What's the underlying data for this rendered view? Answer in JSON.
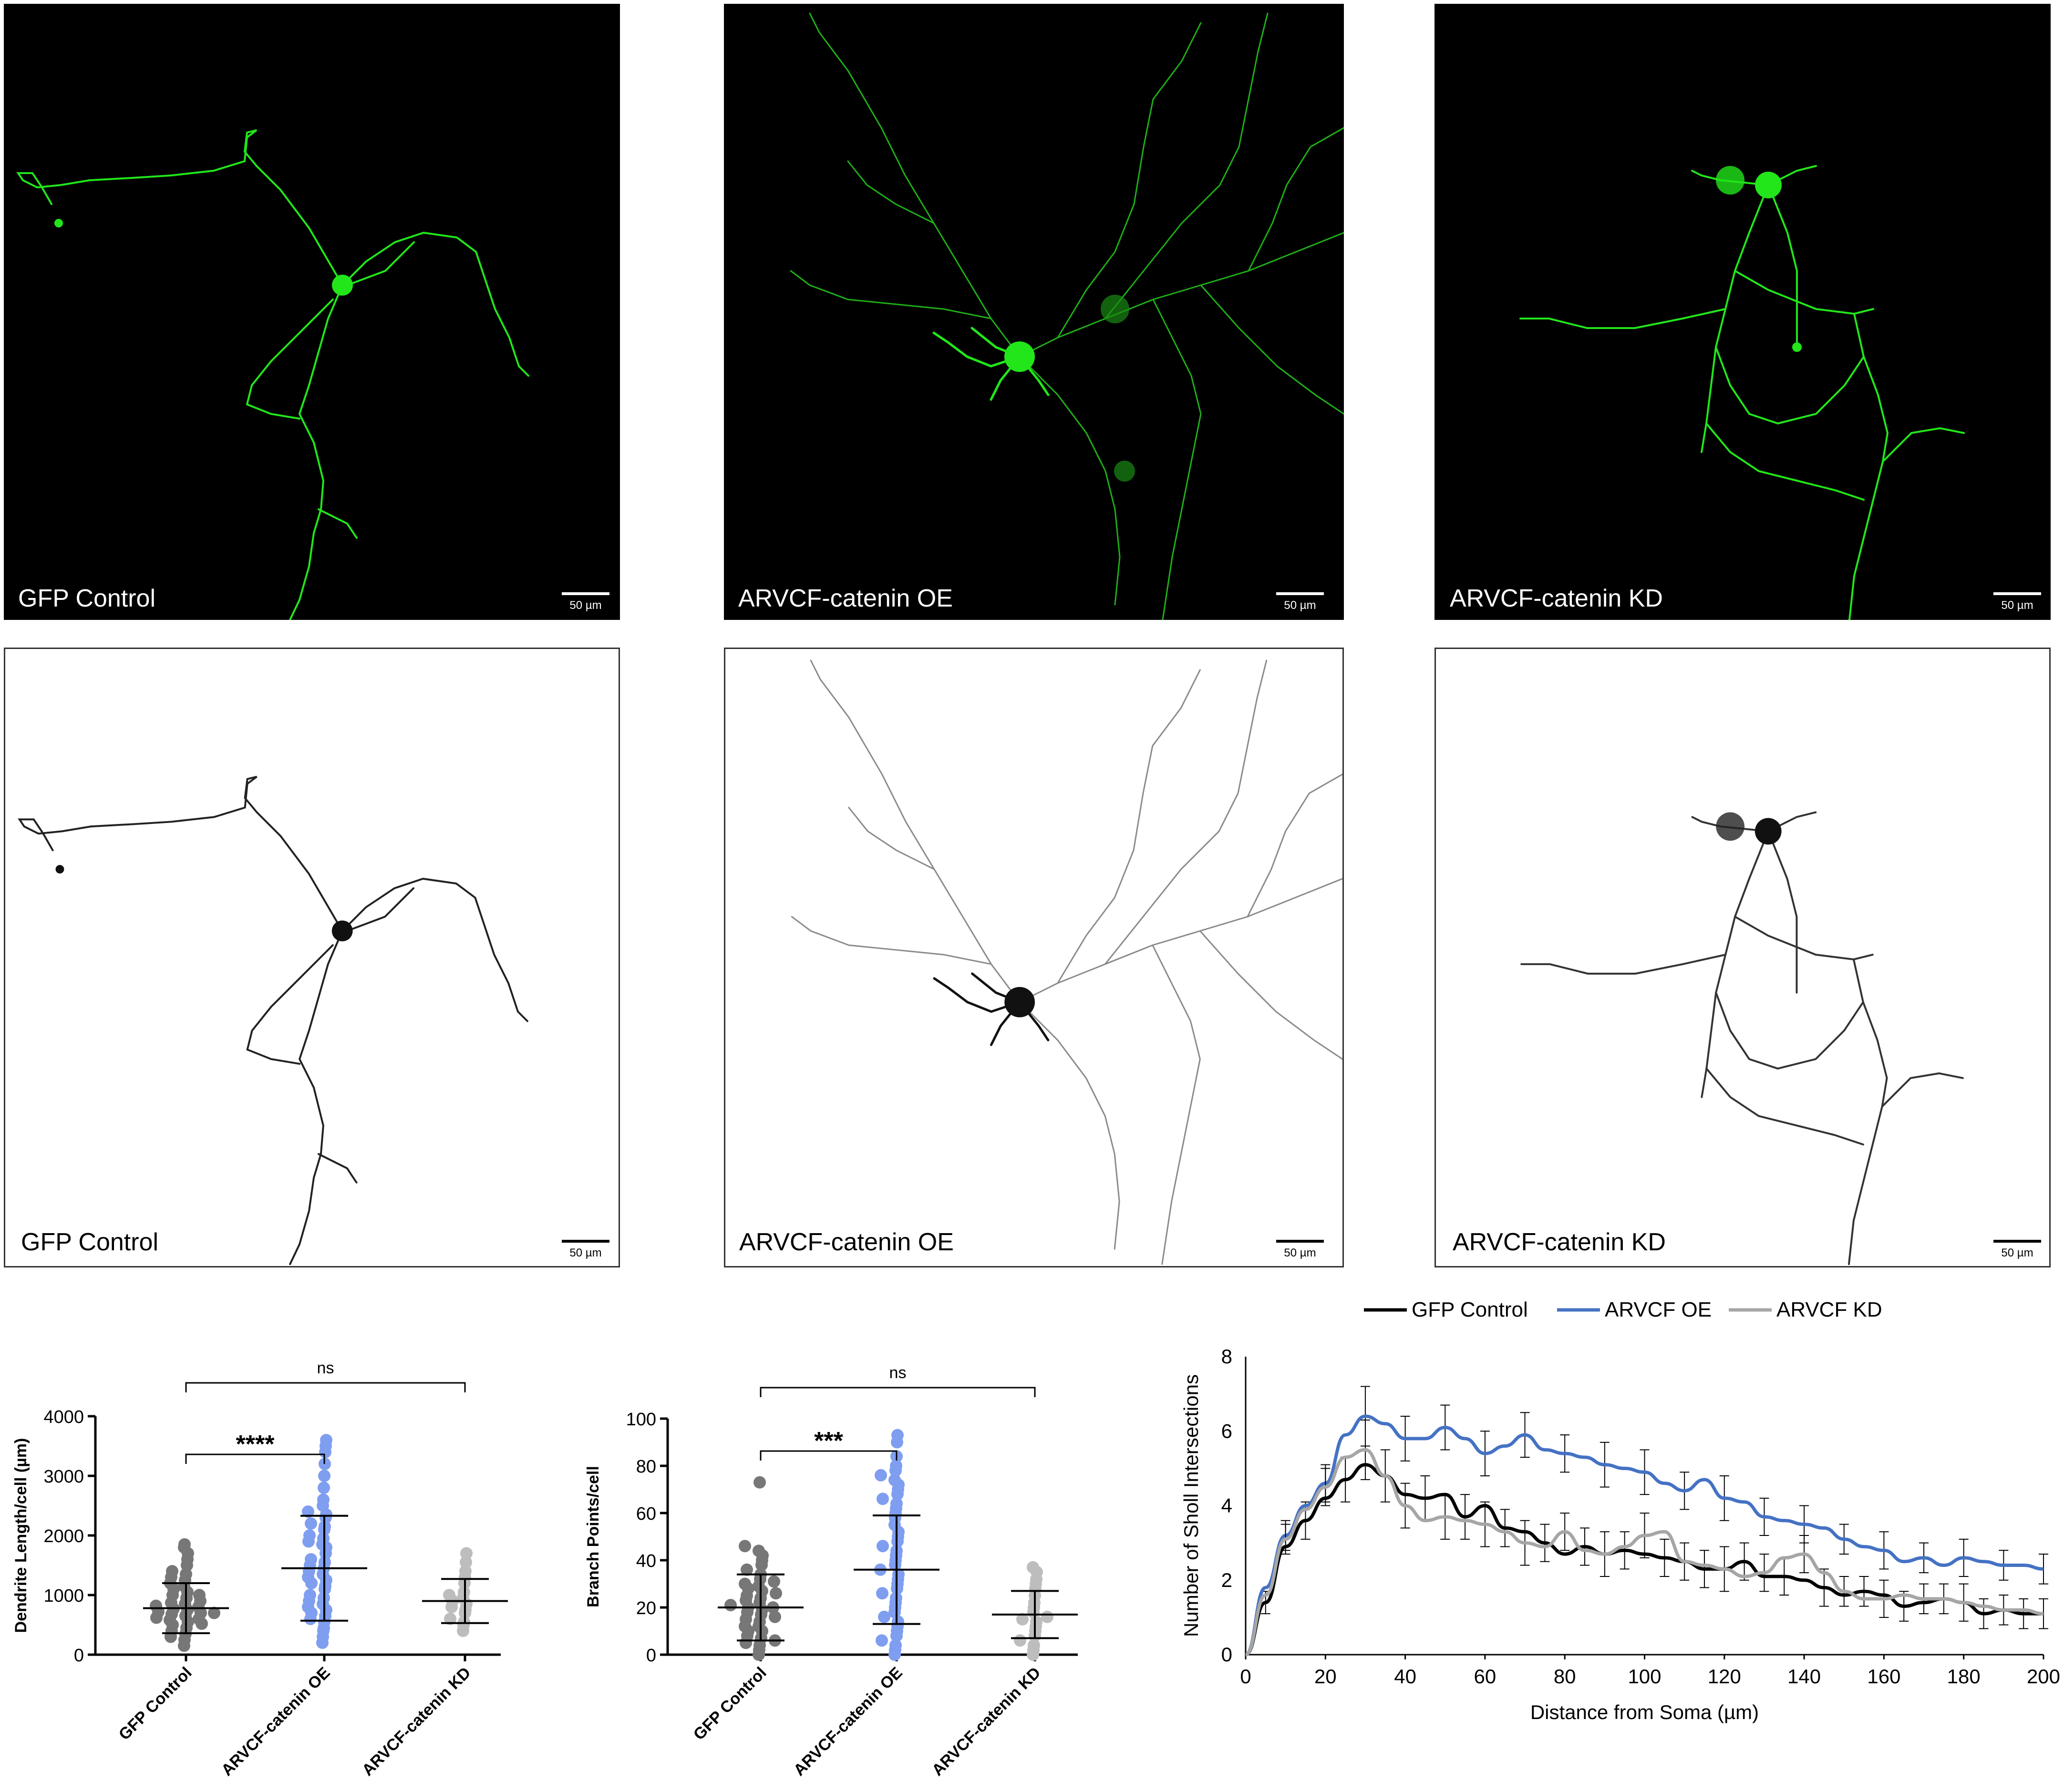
{
  "panels": {
    "top": [
      {
        "label": "GFP Control",
        "scale": "50 µm"
      },
      {
        "label": "ARVCF-catenin OE",
        "scale": "50 µm"
      },
      {
        "label": "ARVCF-catenin KD",
        "scale": "50 µm"
      }
    ],
    "bottom": [
      {
        "label": "GFP Control",
        "scale": "50 µm"
      },
      {
        "label": "ARVCF-catenin OE",
        "scale": "50 µm"
      },
      {
        "label": "ARVCF-catenin KD",
        "scale": "50 µm"
      }
    ],
    "neuron_color": "#22e61a",
    "dark_bg": "#000000",
    "light_bg": "#ffffff"
  },
  "chart_data": [
    {
      "type": "scatter",
      "ylabel": "Dendrite Length/cell (µm)",
      "categories": [
        "GFP Control",
        "ARVCF-catenin OE",
        "ARVCF-catenin KD"
      ],
      "ylim": [
        0,
        4000
      ],
      "yticks": [
        0,
        1000,
        2000,
        3000,
        4000
      ],
      "colors": [
        "#777777",
        "#7f9ef0",
        "#bdbdbd"
      ],
      "series": [
        {
          "mean": 780,
          "sd": 420,
          "values": [
            150,
            250,
            300,
            350,
            400,
            450,
            500,
            520,
            550,
            580,
            600,
            620,
            650,
            680,
            700,
            720,
            750,
            770,
            800,
            820,
            850,
            870,
            900,
            950,
            1000,
            1050,
            1100,
            1150,
            1200,
            1250,
            1300,
            1350,
            1400,
            1500,
            1600,
            1700,
            1800,
            1850,
            1000,
            700
          ]
        },
        {
          "mean": 1450,
          "sd": 880,
          "values": [
            200,
            300,
            400,
            450,
            550,
            600,
            650,
            700,
            750,
            800,
            850,
            900,
            950,
            1000,
            1100,
            1150,
            1200,
            1250,
            1300,
            1350,
            1400,
            1450,
            1500,
            1550,
            1600,
            1700,
            1800,
            1850,
            1900,
            1950,
            2000,
            2100,
            2150,
            2200,
            2300,
            2350,
            2400,
            2500,
            2600,
            2800,
            3000,
            3200,
            3400,
            3500,
            3600
          ]
        },
        {
          "mean": 900,
          "sd": 370,
          "values": [
            400,
            500,
            550,
            600,
            700,
            750,
            800,
            850,
            900,
            950,
            1000,
            1050,
            1200,
            1300,
            1400,
            1550,
            1700
          ]
        }
      ],
      "comparisons": [
        {
          "text": "****"
        },
        {
          "text": "ns"
        }
      ]
    },
    {
      "type": "scatter",
      "ylabel": "Branch Points/cell",
      "categories": [
        "GFP Control",
        "ARVCF-catenin OE",
        "ARVCF-catenin KD"
      ],
      "ylim": [
        0,
        100
      ],
      "yticks": [
        0,
        20,
        40,
        60,
        80,
        100
      ],
      "colors": [
        "#777777",
        "#7f9ef0",
        "#bdbdbd"
      ],
      "series": [
        {
          "mean": 20,
          "sd": 14,
          "values": [
            0,
            2,
            4,
            5,
            6,
            7,
            8,
            10,
            10,
            12,
            12,
            14,
            15,
            16,
            17,
            18,
            19,
            20,
            20,
            21,
            22,
            23,
            24,
            25,
            26,
            27,
            28,
            29,
            30,
            31,
            32,
            34,
            36,
            38,
            40,
            42,
            44,
            46,
            73
          ]
        },
        {
          "mean": 36,
          "sd": 23,
          "values": [
            0,
            2,
            4,
            6,
            8,
            10,
            12,
            14,
            16,
            18,
            20,
            22,
            24,
            26,
            28,
            30,
            32,
            34,
            36,
            38,
            40,
            42,
            44,
            46,
            48,
            50,
            52,
            55,
            58,
            60,
            62,
            64,
            66,
            68,
            70,
            72,
            74,
            76,
            78,
            80,
            84,
            90,
            93
          ]
        },
        {
          "mean": 17,
          "sd": 10,
          "values": [
            0,
            2,
            4,
            6,
            8,
            10,
            12,
            14,
            15,
            16,
            18,
            20,
            22,
            25,
            28,
            30,
            32,
            35,
            37
          ]
        }
      ],
      "comparisons": [
        {
          "text": "***"
        },
        {
          "text": "ns"
        }
      ]
    },
    {
      "type": "line",
      "xlabel": "Distance from Soma (µm)",
      "ylabel": "Number of Sholl Intersections",
      "xlim": [
        0,
        200
      ],
      "ylim": [
        0,
        8
      ],
      "xticks": [
        0,
        20,
        40,
        60,
        80,
        100,
        120,
        140,
        160,
        180,
        200
      ],
      "yticks": [
        0,
        2,
        4,
        6,
        8
      ],
      "legend_position": "top",
      "x": [
        0,
        5,
        10,
        15,
        20,
        25,
        30,
        35,
        40,
        45,
        50,
        55,
        60,
        65,
        70,
        75,
        80,
        85,
        90,
        95,
        100,
        105,
        110,
        115,
        120,
        125,
        130,
        135,
        140,
        145,
        150,
        155,
        160,
        165,
        170,
        175,
        180,
        185,
        190,
        195,
        200
      ],
      "series": [
        {
          "name": "GFP Control",
          "color": "#000000",
          "values": [
            0,
            1.4,
            2.9,
            3.6,
            4.2,
            4.7,
            5.1,
            4.8,
            4.3,
            4.2,
            4.3,
            3.7,
            4.0,
            3.4,
            3.3,
            3.0,
            2.7,
            2.9,
            2.7,
            2.8,
            2.7,
            2.6,
            2.5,
            2.3,
            2.3,
            2.5,
            2.1,
            2.1,
            2.0,
            1.8,
            1.6,
            1.7,
            1.6,
            1.3,
            1.4,
            1.5,
            1.4,
            1.1,
            1.2,
            1.1,
            1.1
          ]
        },
        {
          "name": "ARVCF OE",
          "color": "#4472c4",
          "values": [
            0,
            1.8,
            3.2,
            4.0,
            4.6,
            5.9,
            6.4,
            6.2,
            5.8,
            5.8,
            6.1,
            5.8,
            5.4,
            5.6,
            5.9,
            5.5,
            5.4,
            5.3,
            5.1,
            5.0,
            4.9,
            4.6,
            4.4,
            4.7,
            4.2,
            4.1,
            3.7,
            3.6,
            3.5,
            3.4,
            3.1,
            2.9,
            2.8,
            2.5,
            2.6,
            2.4,
            2.6,
            2.5,
            2.4,
            2.4,
            2.3
          ]
        },
        {
          "name": "ARVCF KD",
          "color": "#a6a6a6",
          "values": [
            0,
            1.6,
            3.1,
            3.9,
            4.5,
            5.3,
            5.5,
            4.8,
            4.0,
            3.6,
            3.7,
            3.6,
            3.5,
            3.3,
            3.0,
            2.9,
            3.3,
            2.8,
            2.7,
            2.9,
            3.2,
            3.3,
            2.5,
            2.4,
            2.3,
            2.1,
            2.2,
            2.6,
            2.7,
            2.2,
            1.7,
            1.5,
            1.5,
            1.6,
            1.5,
            1.5,
            1.4,
            1.3,
            1.2,
            1.2,
            1.1
          ]
        }
      ],
      "error": [
        0,
        0.3,
        0.4,
        0.5,
        0.5,
        0.6,
        0.8,
        0.7,
        0.6,
        0.6,
        0.6,
        0.6,
        0.6,
        0.5,
        0.6,
        0.5,
        0.5,
        0.5,
        0.6,
        0.5,
        0.6,
        0.5,
        0.5,
        0.5,
        0.6,
        0.5,
        0.5,
        0.5,
        0.5,
        0.5,
        0.4,
        0.4,
        0.5,
        0.4,
        0.4,
        0.4,
        0.5,
        0.4,
        0.4,
        0.4,
        0.4
      ]
    }
  ]
}
